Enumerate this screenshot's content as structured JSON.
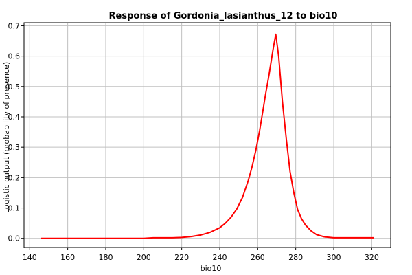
{
  "chart_data": {
    "type": "line",
    "title": "Response of Gordonia_lasianthus_12 to bio10",
    "xlabel": "bio10",
    "ylabel": "Logistic output (probability of presence)",
    "xlim": [
      137,
      330
    ],
    "ylim": [
      -0.03,
      0.71
    ],
    "xticks": [
      "140",
      "160",
      "180",
      "200",
      "220",
      "240",
      "260",
      "280",
      "300",
      "320"
    ],
    "yticks": [
      "0.0",
      "0.1",
      "0.2",
      "0.3",
      "0.4",
      "0.5",
      "0.6",
      "0.7"
    ],
    "grid": true,
    "series_color": "#ff0000",
    "series": [
      {
        "x": [
          146,
          160,
          180,
          200,
          205,
          215,
          220,
          225,
          230,
          235,
          240,
          243,
          246,
          249,
          252,
          255,
          257,
          259,
          261,
          263,
          264,
          266,
          268,
          269.5,
          271,
          273,
          275,
          277,
          279,
          281,
          283,
          285,
          288,
          291,
          295,
          300,
          310,
          321
        ],
        "y": [
          0.0,
          0.0,
          0.0,
          0.0,
          0.002,
          0.002,
          0.003,
          0.006,
          0.011,
          0.02,
          0.035,
          0.05,
          0.07,
          0.097,
          0.135,
          0.19,
          0.235,
          0.29,
          0.355,
          0.43,
          0.47,
          0.54,
          0.62,
          0.672,
          0.6,
          0.45,
          0.33,
          0.22,
          0.15,
          0.095,
          0.065,
          0.045,
          0.025,
          0.012,
          0.005,
          0.002,
          0.002,
          0.002
        ]
      }
    ]
  }
}
